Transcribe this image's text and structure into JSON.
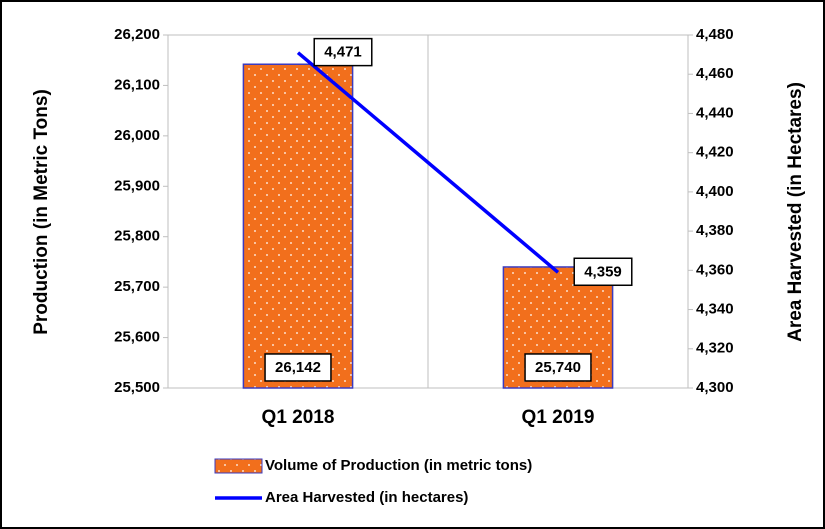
{
  "chart_data": {
    "type": "bar",
    "categories": [
      "Q1 2018",
      "Q1 2019"
    ],
    "series": [
      {
        "name": "Volume of Production (in metric tons)",
        "type": "bar",
        "color": "#f26f1c",
        "border": "#3b3bbf",
        "values": [
          26142,
          25740
        ],
        "value_labels": [
          "26,142",
          "25,740"
        ]
      },
      {
        "name": "Area Harvested (in hectares)",
        "type": "line",
        "axis": "y2",
        "color": "#0000ff",
        "values": [
          4471,
          4359
        ],
        "value_labels": [
          "4,471",
          "4,359"
        ]
      }
    ],
    "ylabel": "Production (in Metric Tons)",
    "y2label": "Area Harvested (in Hectares)",
    "ylim": [
      25500,
      26200
    ],
    "yticks": [
      {
        "value": 25500,
        "label": "25,500"
      },
      {
        "value": 25600,
        "label": "25,600"
      },
      {
        "value": 25700,
        "label": "25,700"
      },
      {
        "value": 25800,
        "label": "25,800"
      },
      {
        "value": 25900,
        "label": "25,900"
      },
      {
        "value": 26000,
        "label": "26,000"
      },
      {
        "value": 26100,
        "label": "26,100"
      },
      {
        "value": 26200,
        "label": "26,200"
      }
    ],
    "y2lim": [
      4300,
      4480
    ],
    "y2ticks": [
      {
        "value": 4300,
        "label": "4,300"
      },
      {
        "value": 4320,
        "label": "4,320"
      },
      {
        "value": 4340,
        "label": "4,340"
      },
      {
        "value": 4360,
        "label": "4,360"
      },
      {
        "value": 4380,
        "label": "4,380"
      },
      {
        "value": 4400,
        "label": "4,400"
      },
      {
        "value": 4420,
        "label": "4,420"
      },
      {
        "value": 4440,
        "label": "4,440"
      },
      {
        "value": 4460,
        "label": "4,460"
      },
      {
        "value": 4480,
        "label": "4,480"
      }
    ],
    "legend": "bottom"
  }
}
